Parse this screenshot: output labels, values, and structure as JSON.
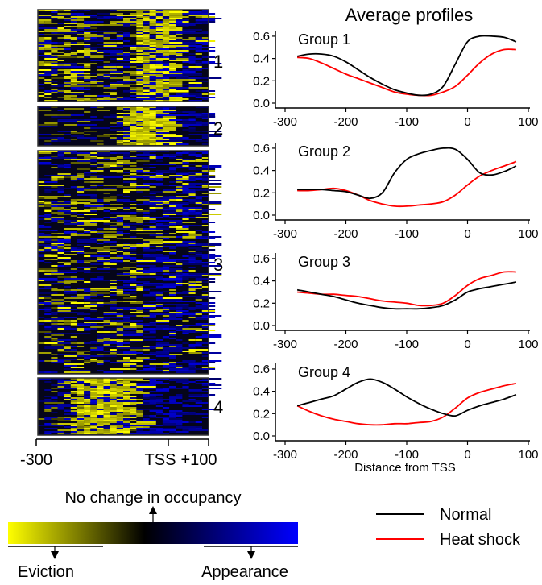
{
  "colors": {
    "eviction": "#ffff00",
    "no_change": "#000000",
    "appearance": "#0000ff",
    "normal_line": "#000000",
    "heat_shock_line": "#ff0000",
    "frame": "#333333"
  },
  "heatmap": {
    "groups": [
      "1",
      "2",
      "3",
      "4"
    ],
    "x_axis": {
      "left_label": "-300",
      "tss_label": "TSS",
      "right_label": "+100"
    }
  },
  "colorbar": {
    "no_change_label": "No change in occupancy",
    "eviction_label": "Eviction",
    "appearance_label": "Appearance"
  },
  "legend": [
    {
      "name": "Normal",
      "color": "#000000"
    },
    {
      "name": "Heat shock",
      "color": "#ff0000"
    }
  ],
  "chart_data": {
    "type": "line",
    "title": "Average profiles",
    "xlabel": "Distance from TSS",
    "ylabel": "",
    "xlim": [
      -300,
      100
    ],
    "ylim": [
      0,
      0.65
    ],
    "x_ticks": [
      "-300",
      "-200",
      "-100",
      "0",
      "100"
    ],
    "y_ticks": [
      "0.0",
      "0.2",
      "0.4",
      "0.6"
    ],
    "grid": false,
    "legend_position": "bottom-right",
    "panels": [
      {
        "label": "Group 1",
        "series": [
          {
            "name": "Normal",
            "x": [
              -280,
              -260,
              -240,
              -220,
              -200,
              -180,
              -160,
              -140,
              -120,
              -100,
              -80,
              -60,
              -40,
              -20,
              0,
              20,
              40,
              60,
              80
            ],
            "y": [
              0.42,
              0.44,
              0.44,
              0.42,
              0.37,
              0.3,
              0.23,
              0.17,
              0.12,
              0.09,
              0.07,
              0.08,
              0.15,
              0.35,
              0.55,
              0.6,
              0.6,
              0.59,
              0.55
            ]
          },
          {
            "name": "Heat shock",
            "x": [
              -280,
              -260,
              -240,
              -220,
              -200,
              -180,
              -160,
              -140,
              -120,
              -100,
              -80,
              -60,
              -40,
              -20,
              0,
              20,
              40,
              60,
              80
            ],
            "y": [
              0.41,
              0.4,
              0.36,
              0.31,
              0.26,
              0.22,
              0.18,
              0.14,
              0.1,
              0.08,
              0.07,
              0.07,
              0.1,
              0.15,
              0.25,
              0.36,
              0.44,
              0.48,
              0.48
            ]
          }
        ]
      },
      {
        "label": "Group 2",
        "series": [
          {
            "name": "Normal",
            "x": [
              -280,
              -260,
              -240,
              -220,
              -200,
              -180,
              -160,
              -140,
              -120,
              -100,
              -80,
              -60,
              -40,
              -20,
              0,
              20,
              40,
              60,
              80
            ],
            "y": [
              0.23,
              0.23,
              0.23,
              0.22,
              0.21,
              0.18,
              0.15,
              0.2,
              0.38,
              0.5,
              0.55,
              0.58,
              0.6,
              0.59,
              0.5,
              0.38,
              0.36,
              0.39,
              0.44
            ]
          },
          {
            "name": "Heat shock",
            "x": [
              -280,
              -260,
              -240,
              -220,
              -200,
              -180,
              -160,
              -140,
              -120,
              -100,
              -80,
              -60,
              -40,
              -20,
              0,
              20,
              40,
              60,
              80
            ],
            "y": [
              0.22,
              0.22,
              0.23,
              0.24,
              0.22,
              0.18,
              0.13,
              0.1,
              0.08,
              0.08,
              0.09,
              0.1,
              0.12,
              0.18,
              0.27,
              0.35,
              0.4,
              0.44,
              0.48
            ]
          }
        ]
      },
      {
        "label": "Group 3",
        "series": [
          {
            "name": "Normal",
            "x": [
              -280,
              -260,
              -240,
              -220,
              -200,
              -180,
              -160,
              -140,
              -120,
              -100,
              -80,
              -60,
              -40,
              -20,
              0,
              20,
              40,
              60,
              80
            ],
            "y": [
              0.32,
              0.3,
              0.28,
              0.26,
              0.23,
              0.2,
              0.18,
              0.16,
              0.15,
              0.15,
              0.15,
              0.16,
              0.18,
              0.23,
              0.3,
              0.33,
              0.35,
              0.37,
              0.39
            ]
          },
          {
            "name": "Heat shock",
            "x": [
              -280,
              -260,
              -240,
              -220,
              -200,
              -180,
              -160,
              -140,
              -120,
              -100,
              -80,
              -60,
              -40,
              -20,
              0,
              20,
              40,
              60,
              80
            ],
            "y": [
              0.3,
              0.29,
              0.28,
              0.28,
              0.27,
              0.26,
              0.24,
              0.22,
              0.21,
              0.2,
              0.18,
              0.18,
              0.2,
              0.27,
              0.36,
              0.42,
              0.45,
              0.48,
              0.48
            ]
          }
        ]
      },
      {
        "label": "Group 4",
        "series": [
          {
            "name": "Normal",
            "x": [
              -280,
              -260,
              -240,
              -220,
              -200,
              -180,
              -160,
              -140,
              -120,
              -100,
              -80,
              -60,
              -40,
              -20,
              0,
              20,
              40,
              60,
              80
            ],
            "y": [
              0.27,
              0.3,
              0.33,
              0.36,
              0.42,
              0.48,
              0.51,
              0.48,
              0.42,
              0.35,
              0.29,
              0.24,
              0.2,
              0.18,
              0.23,
              0.27,
              0.3,
              0.33,
              0.37
            ]
          },
          {
            "name": "Heat shock",
            "x": [
              -280,
              -260,
              -240,
              -220,
              -200,
              -180,
              -160,
              -140,
              -120,
              -100,
              -80,
              -60,
              -40,
              -20,
              0,
              20,
              40,
              60,
              80
            ],
            "y": [
              0.27,
              0.22,
              0.18,
              0.15,
              0.13,
              0.11,
              0.1,
              0.1,
              0.11,
              0.11,
              0.12,
              0.13,
              0.17,
              0.25,
              0.34,
              0.39,
              0.42,
              0.45,
              0.47
            ]
          }
        ]
      }
    ]
  }
}
